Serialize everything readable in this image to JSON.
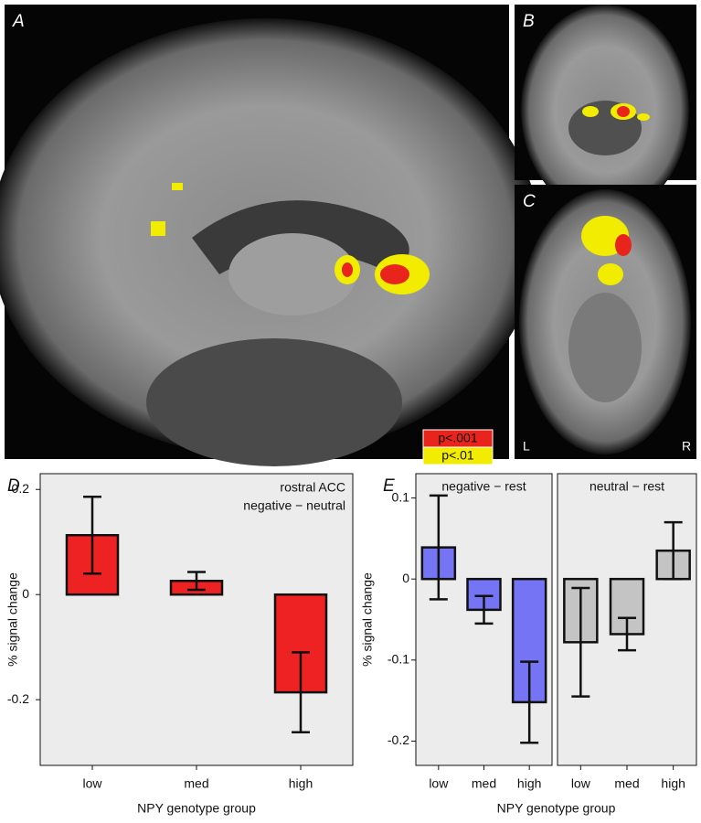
{
  "images": {
    "panels": [
      {
        "label": "A"
      },
      {
        "label": "B"
      },
      {
        "label": "C",
        "left": "L",
        "right": "R"
      }
    ],
    "legend": [
      {
        "label": "p<.001",
        "color": "#e8241c"
      },
      {
        "label": "p<.01",
        "color": "#f2ec00"
      }
    ]
  },
  "chart_data": [
    {
      "type": "bar",
      "panel": "D",
      "annotations": [
        "rostral ACC",
        "negative − neutral"
      ],
      "categories": [
        "low",
        "med",
        "high"
      ],
      "values": [
        0.113,
        0.026,
        -0.186
      ],
      "errors": [
        0.073,
        0.017,
        0.076
      ],
      "color": "#ee2222",
      "ylim": [
        -0.325,
        0.23
      ],
      "yticks": [
        0.2,
        0,
        -0.2
      ],
      "xlabel": "NPY genotype group",
      "ylabel": "% signal change"
    },
    {
      "type": "bar",
      "panel": "E",
      "categories": [
        "low",
        "med",
        "high"
      ],
      "series": [
        {
          "name": "negative − rest",
          "color": "#7474f4",
          "values": [
            0.039,
            -0.038,
            -0.152
          ],
          "errors": [
            0.064,
            0.017,
            0.05
          ]
        },
        {
          "name": "neutral − rest",
          "color": "#c4c4c4",
          "values": [
            -0.078,
            -0.068,
            0.035
          ],
          "errors": [
            0.067,
            0.02,
            0.035
          ]
        }
      ],
      "ylim": [
        -0.23,
        0.13
      ],
      "yticks": [
        0.1,
        0,
        -0.1,
        -0.2
      ],
      "xlabel": "NPY genotype group",
      "ylabel": "% signal change"
    }
  ]
}
